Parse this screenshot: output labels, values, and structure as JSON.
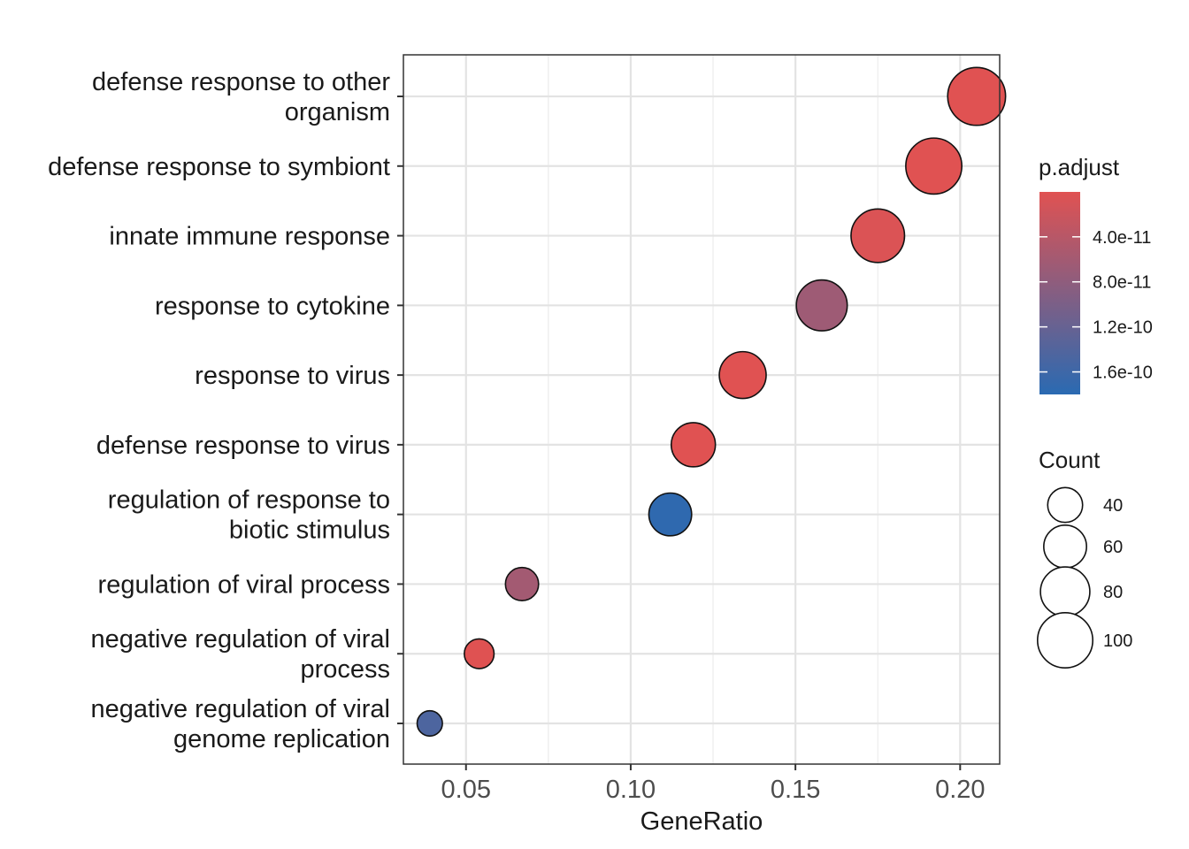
{
  "chart_data": {
    "type": "scatter",
    "xlabel": "GeneRatio",
    "ylabel": "",
    "xlim": [
      0.031,
      0.212
    ],
    "x_ticks": [
      "0.05",
      "0.10",
      "0.15",
      "0.20"
    ],
    "x_tick_values": [
      0.05,
      0.1,
      0.15,
      0.2
    ],
    "grid": true,
    "categories": [
      "defense response to other organism",
      "defense response to symbiont",
      "innate immune response",
      "response to cytokine",
      "response to virus",
      "defense response to virus",
      "regulation of response to biotic stimulus",
      "regulation of viral process",
      "negative regulation of viral process",
      "negative regulation of viral genome replication"
    ],
    "category_lines": [
      [
        "defense response to other",
        "organism"
      ],
      [
        "defense response to symbiont"
      ],
      [
        "innate immune response"
      ],
      [
        "response to cytokine"
      ],
      [
        "response to virus"
      ],
      [
        "defense response to virus"
      ],
      [
        "regulation of response to",
        "biotic stimulus"
      ],
      [
        "regulation of viral process"
      ],
      [
        "negative regulation of viral",
        "process"
      ],
      [
        "negative regulation of viral",
        "genome replication"
      ]
    ],
    "points": [
      {
        "term": "defense response to other organism",
        "gene_ratio": 0.205,
        "count": 110,
        "p_adjust": 1e-13
      },
      {
        "term": "defense response to symbiont",
        "gene_ratio": 0.192,
        "count": 103,
        "p_adjust": 1e-13
      },
      {
        "term": "innate immune response",
        "gene_ratio": 0.175,
        "count": 94,
        "p_adjust": 5e-12
      },
      {
        "term": "response to cytokine",
        "gene_ratio": 0.158,
        "count": 85,
        "p_adjust": 6.5e-11
      },
      {
        "term": "response to virus",
        "gene_ratio": 0.134,
        "count": 72,
        "p_adjust": 1e-13
      },
      {
        "term": "defense response to virus",
        "gene_ratio": 0.119,
        "count": 64,
        "p_adjust": 1e-13
      },
      {
        "term": "regulation of response to biotic stimulus",
        "gene_ratio": 0.112,
        "count": 60,
        "p_adjust": 1.75e-10
      },
      {
        "term": "regulation of viral process",
        "gene_ratio": 0.067,
        "count": 36,
        "p_adjust": 6e-11
      },
      {
        "term": "negative regulation of viral process",
        "gene_ratio": 0.054,
        "count": 29,
        "p_adjust": 1e-12
      },
      {
        "term": "negative regulation of viral genome replication",
        "gene_ratio": 0.039,
        "count": 21,
        "p_adjust": 1.45e-10
      }
    ],
    "legend": {
      "color": {
        "title": "p.adjust",
        "low_color": "#e05252",
        "high_color": "#2a6ab2",
        "min": 1e-13,
        "max": 1.8e-10,
        "tick_labels": [
          "4.0e-11",
          "8.0e-11",
          "1.2e-10",
          "1.6e-10"
        ],
        "tick_values": [
          4e-11,
          8e-11,
          1.2e-10,
          1.6e-10
        ]
      },
      "size": {
        "title": "Count",
        "labels": [
          "40",
          "60",
          "80",
          "100"
        ],
        "values": [
          40,
          60,
          80,
          100
        ]
      },
      "placement": "right"
    }
  }
}
